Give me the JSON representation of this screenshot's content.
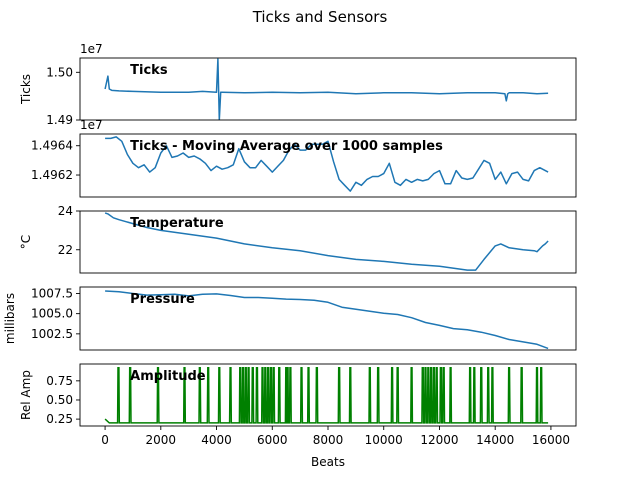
{
  "figure": {
    "title": "Ticks and Sensors"
  },
  "chart_data": [
    {
      "type": "line",
      "panel": "ticks",
      "title": "Ticks",
      "ylabel": "Ticks",
      "exponent_label": "1e7",
      "x_range": [
        0,
        15900
      ],
      "ylim": [
        14.9,
        15.03
      ],
      "yticks": [
        14.9,
        15.0
      ],
      "ytick_labels": [
        "1.49",
        "1.50"
      ],
      "color": "#1f77b4",
      "series": [
        {
          "x": [
            0,
            100,
            150,
            250,
            500,
            1000,
            2000,
            3000,
            3500,
            4000,
            4050,
            4100,
            4150,
            4200,
            5000,
            6000,
            7000,
            8000,
            9000,
            10000,
            11000,
            12000,
            13000,
            14000,
            14350,
            14400,
            14450,
            14500,
            15000,
            15500,
            15900
          ],
          "y": [
            14.965,
            14.992,
            14.965,
            14.962,
            14.961,
            14.96,
            14.958,
            14.958,
            14.96,
            14.958,
            15.028,
            14.9,
            14.958,
            14.958,
            14.957,
            14.958,
            14.957,
            14.958,
            14.955,
            14.957,
            14.957,
            14.955,
            14.957,
            14.957,
            14.955,
            14.94,
            14.955,
            14.957,
            14.957,
            14.955,
            14.956
          ]
        }
      ]
    },
    {
      "type": "line",
      "panel": "ticks-moving-average",
      "title": "Ticks - Moving Average over 1000 samples",
      "ylabel": "",
      "exponent_label": "1e7",
      "x_range": [
        0,
        15900
      ],
      "ylim": [
        1.49605,
        1.49648
      ],
      "yticks": [
        1.4962,
        1.4964
      ],
      "ytick_labels": [
        "1.4962",
        "1.4964"
      ],
      "color": "#1f77b4",
      "series": [
        {
          "x": [
            0,
            200,
            400,
            600,
            800,
            1000,
            1200,
            1400,
            1600,
            1800,
            2000,
            2200,
            2400,
            2600,
            2800,
            3000,
            3200,
            3400,
            3600,
            3800,
            4000,
            4200,
            4400,
            4600,
            4800,
            5000,
            5200,
            5400,
            5600,
            5800,
            6000,
            6200,
            6400,
            6600,
            6800,
            7000,
            7200,
            7400,
            7600,
            7800,
            8000,
            8200,
            8400,
            8600,
            8800,
            9000,
            9200,
            9400,
            9600,
            9800,
            10000,
            10200,
            10400,
            10600,
            10800,
            11000,
            11200,
            11400,
            11600,
            11800,
            12000,
            12200,
            12400,
            12600,
            12800,
            13000,
            13200,
            13400,
            13600,
            13800,
            14000,
            14200,
            14400,
            14600,
            14800,
            15000,
            15200,
            15400,
            15600,
            15900
          ],
          "y": [
            1.49645,
            1.49645,
            1.49646,
            1.49643,
            1.49634,
            1.49628,
            1.49625,
            1.49627,
            1.49622,
            1.49625,
            1.49635,
            1.4964,
            1.49632,
            1.49633,
            1.49635,
            1.49632,
            1.49633,
            1.49631,
            1.49628,
            1.49623,
            1.49626,
            1.49624,
            1.49625,
            1.49627,
            1.49638,
            1.49629,
            1.49625,
            1.49625,
            1.4963,
            1.49626,
            1.49622,
            1.49626,
            1.4963,
            1.49637,
            1.49641,
            1.49637,
            1.49637,
            1.49641,
            1.49641,
            1.49641,
            1.49643,
            1.49629,
            1.49617,
            1.49613,
            1.49609,
            1.49615,
            1.49613,
            1.49617,
            1.49619,
            1.49619,
            1.49621,
            1.49628,
            1.49615,
            1.49613,
            1.49617,
            1.49615,
            1.49617,
            1.49616,
            1.49617,
            1.49621,
            1.49623,
            1.49614,
            1.49614,
            1.49623,
            1.49618,
            1.49617,
            1.49618,
            1.49624,
            1.4963,
            1.49628,
            1.49617,
            1.49622,
            1.49614,
            1.49621,
            1.49622,
            1.49617,
            1.49616,
            1.49623,
            1.49625,
            1.49622
          ]
        }
      ]
    },
    {
      "type": "line",
      "panel": "temperature",
      "title": "Temperature",
      "ylabel": "°C",
      "x_range": [
        0,
        15900
      ],
      "ylim": [
        20.8,
        24.0
      ],
      "yticks": [
        22,
        24
      ],
      "ytick_labels": [
        "22",
        "24"
      ],
      "color": "#1f77b4",
      "series": [
        {
          "x": [
            0,
            100,
            300,
            500,
            1000,
            1500,
            2000,
            3000,
            4000,
            5000,
            6000,
            7000,
            8000,
            9000,
            10000,
            11000,
            12000,
            13000,
            13300,
            13600,
            14000,
            14200,
            14500,
            15000,
            15400,
            15500,
            15700,
            15800,
            15900
          ],
          "y": [
            23.9,
            23.85,
            23.65,
            23.55,
            23.35,
            23.15,
            23.0,
            22.8,
            22.6,
            22.3,
            22.1,
            21.95,
            21.7,
            21.5,
            21.4,
            21.25,
            21.15,
            20.95,
            20.95,
            21.5,
            22.2,
            22.3,
            22.1,
            22.0,
            21.95,
            21.9,
            22.2,
            22.3,
            22.45
          ]
        }
      ]
    },
    {
      "type": "line",
      "panel": "pressure",
      "title": "Pressure",
      "ylabel": "millibars",
      "x_range": [
        0,
        15900
      ],
      "ylim": [
        1000.5,
        1008.3
      ],
      "yticks": [
        1002.5,
        1005.0,
        1007.5
      ],
      "ytick_labels": [
        "1002.5",
        "1005.0",
        "1007.5"
      ],
      "color": "#1f77b4",
      "series": [
        {
          "x": [
            0,
            500,
            1000,
            1500,
            2000,
            2500,
            3000,
            3500,
            4000,
            4500,
            5000,
            5500,
            6000,
            6500,
            7000,
            7500,
            8000,
            8500,
            9000,
            9500,
            10000,
            10500,
            11000,
            11500,
            12000,
            12500,
            13000,
            13500,
            14000,
            14500,
            15000,
            15500,
            15900
          ],
          "y": [
            1007.8,
            1007.7,
            1007.5,
            1007.3,
            1007.35,
            1007.4,
            1007.2,
            1007.4,
            1007.45,
            1007.25,
            1007.0,
            1007.0,
            1006.9,
            1006.8,
            1006.75,
            1006.65,
            1006.4,
            1005.8,
            1005.55,
            1005.3,
            1005.05,
            1004.9,
            1004.5,
            1003.9,
            1003.55,
            1003.15,
            1003.0,
            1002.7,
            1002.3,
            1001.8,
            1001.5,
            1001.2,
            1000.7
          ]
        }
      ]
    },
    {
      "type": "line",
      "panel": "amplitude",
      "title": "Amplitude",
      "ylabel": "Rel Amp",
      "xlabel": "Beats",
      "x_range": [
        0,
        15900
      ],
      "xlim": [
        -900,
        16900
      ],
      "xticks": [
        0,
        2000,
        4000,
        6000,
        8000,
        10000,
        12000,
        14000,
        16000
      ],
      "xtick_labels": [
        "0",
        "2000",
        "4000",
        "6000",
        "8000",
        "10000",
        "12000",
        "14000",
        "16000"
      ],
      "ylim": [
        0.16,
        0.97
      ],
      "yticks": [
        0.25,
        0.5,
        0.75
      ],
      "ytick_labels": [
        "0.25",
        "0.50",
        "0.75"
      ],
      "color": "#008000",
      "baseline": 0.2,
      "start_value": 0.25,
      "spike_height": 0.92,
      "spike_positions": [
        480,
        900,
        1900,
        2850,
        3400,
        3700,
        4100,
        4500,
        4850,
        4950,
        5050,
        5150,
        5300,
        5450,
        5650,
        5750,
        5850,
        5950,
        6050,
        6250,
        6500,
        6550,
        6650,
        7050,
        7300,
        7600,
        8400,
        8800,
        9500,
        9800,
        10300,
        10500,
        11000,
        11400,
        11500,
        11600,
        11700,
        11800,
        11900,
        12050,
        12150,
        12400,
        13100,
        13250,
        13500,
        13750,
        13900,
        14500,
        14950,
        15500,
        15650
      ]
    }
  ]
}
